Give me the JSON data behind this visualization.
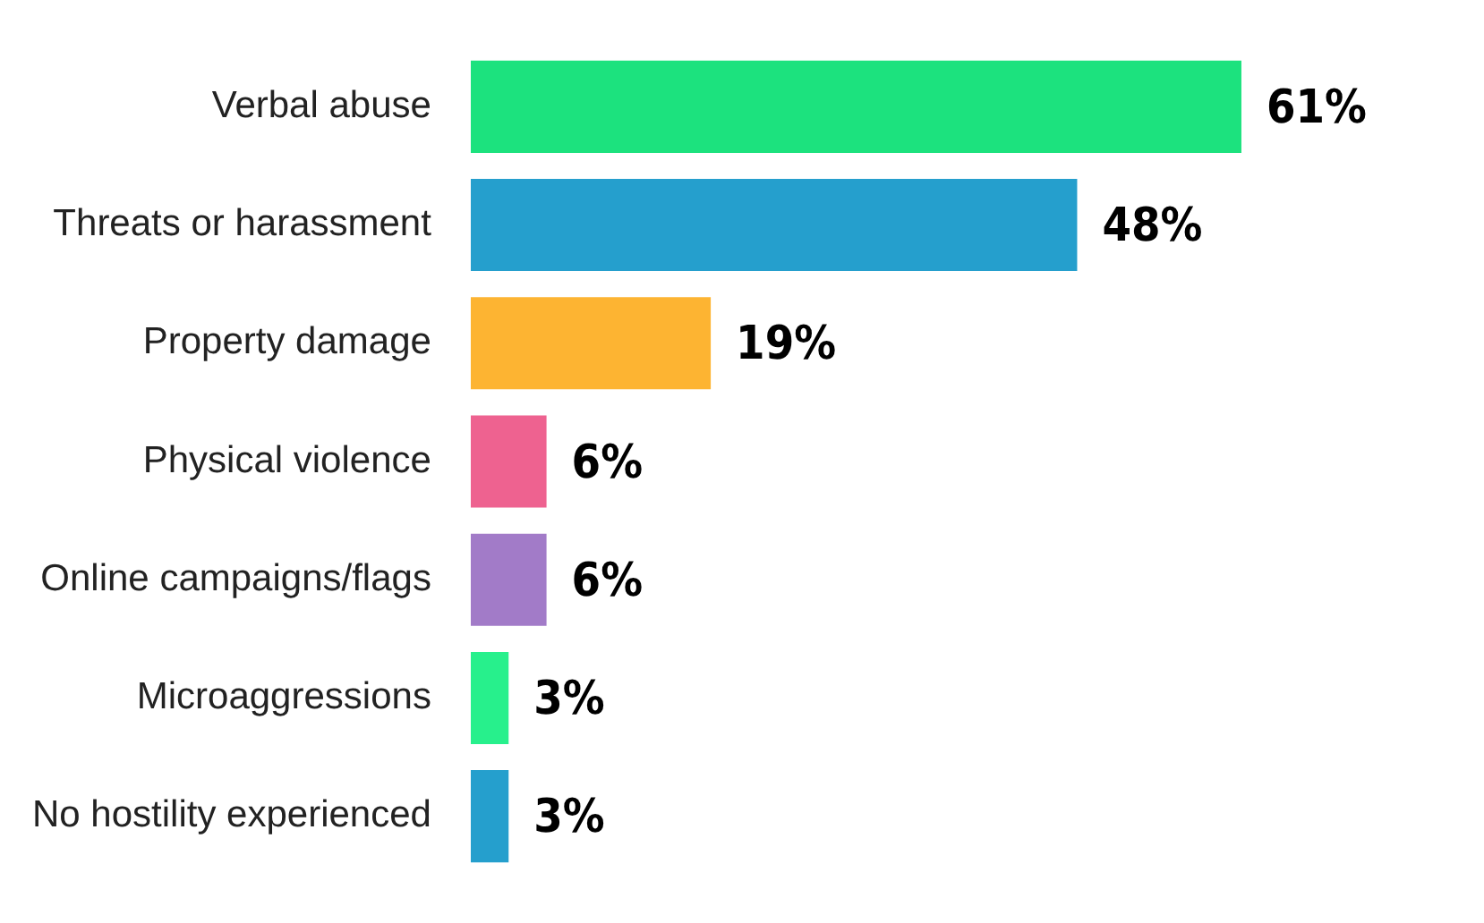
{
  "chart_data": {
    "type": "bar",
    "orientation": "horizontal",
    "tick_labels": "y",
    "categories": [
      "Verbal abuse",
      "Threats or harassment",
      "Property damage",
      "Physical violence",
      "Online campaigns/flags",
      "Microaggressions",
      "No hostility experienced"
    ],
    "values": [
      61,
      48,
      19,
      6,
      6,
      3,
      3
    ],
    "colors": [
      "#1ce27e",
      "#259fcd",
      "#fdb432",
      "#ee6290",
      "#a27bc8",
      "#27f08c",
      "#259fcd"
    ],
    "value_labels": [
      "61%",
      "48%",
      "19%",
      "6%",
      "6%",
      "3%",
      "3%"
    ],
    "legend": false
  }
}
